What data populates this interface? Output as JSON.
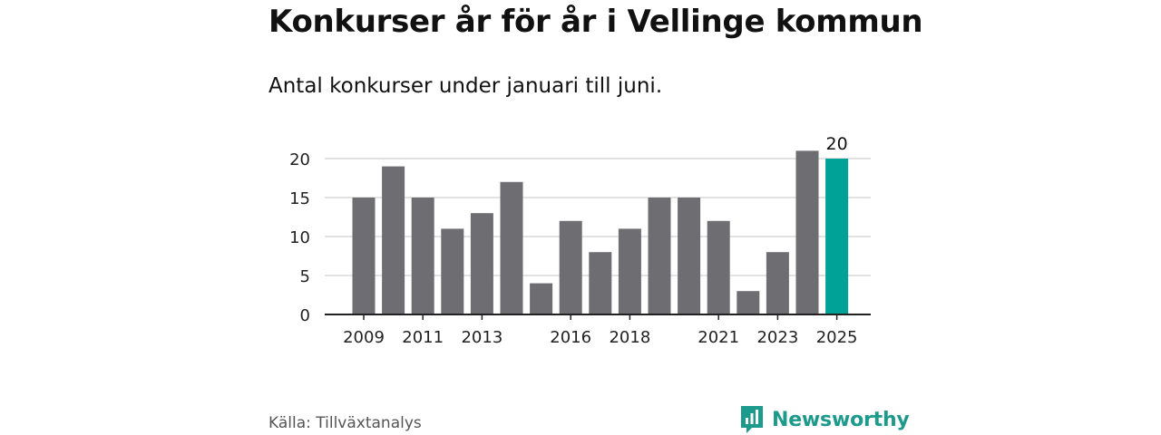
{
  "header": {
    "title": "Konkurser år för år i Vellinge kommun",
    "subtitle": "Antal konkurser under januari till juni."
  },
  "footer": {
    "source": "Källa: Tillväxtanalys",
    "brand": "Newsworthy",
    "brand_icon": "newsworthy-logo-icon"
  },
  "colors": {
    "bar": "#6e6d72",
    "highlight": "#00a196",
    "brand": "#1c9a8c"
  },
  "chart_data": {
    "type": "bar",
    "categories": [
      "2009",
      "2010",
      "2011",
      "2012",
      "2013",
      "2014",
      "2015",
      "2016",
      "2017",
      "2018",
      "2019",
      "2020",
      "2021",
      "2022",
      "2023",
      "2024",
      "2025"
    ],
    "values": [
      15,
      19,
      15,
      11,
      13,
      17,
      4,
      12,
      8,
      11,
      15,
      15,
      12,
      3,
      8,
      21,
      20
    ],
    "x_tick_labels": [
      "2009",
      "2011",
      "2013",
      "2016",
      "2018",
      "2021",
      "2023",
      "2025"
    ],
    "y_ticks": [
      0,
      5,
      10,
      15,
      20
    ],
    "ylim": [
      0,
      21
    ],
    "highlight_category": "2025",
    "data_labels": [
      {
        "category": "2025",
        "text": "20"
      }
    ],
    "grid": true,
    "legend": "none"
  }
}
